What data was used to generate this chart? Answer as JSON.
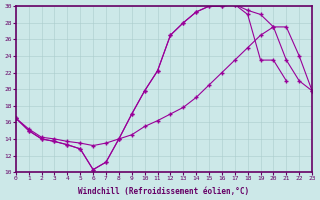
{
  "xlabel": "Windchill (Refroidissement éolien,°C)",
  "background_color": "#cce8e8",
  "line_color": "#990099",
  "xlim": [
    0,
    23
  ],
  "ylim": [
    10,
    30
  ],
  "xticks": [
    0,
    1,
    2,
    3,
    4,
    5,
    6,
    7,
    8,
    9,
    10,
    11,
    12,
    13,
    14,
    15,
    16,
    17,
    18,
    19,
    20,
    21,
    22,
    23
  ],
  "yticks": [
    10,
    12,
    14,
    16,
    18,
    20,
    22,
    24,
    26,
    28,
    30
  ],
  "curve1_x": [
    0,
    1,
    2,
    3,
    4,
    5,
    6,
    7,
    8,
    9,
    10,
    11,
    12,
    13,
    14,
    15,
    16,
    17,
    18,
    19,
    20,
    21
  ],
  "curve1_y": [
    16.5,
    15.0,
    14.0,
    13.7,
    13.3,
    12.8,
    10.3,
    11.2,
    14.0,
    17.0,
    19.8,
    22.2,
    26.5,
    28.0,
    29.3,
    30.0,
    30.0,
    30.2,
    29.0,
    23.5,
    23.5,
    21.0
  ],
  "curve2_x": [
    0,
    1,
    2,
    3,
    4,
    5,
    6,
    7,
    8,
    9,
    10,
    11,
    12,
    13,
    14,
    15,
    16,
    17,
    18,
    19,
    20,
    21,
    22,
    23
  ],
  "curve2_y": [
    16.5,
    15.0,
    14.0,
    13.7,
    13.3,
    12.8,
    10.3,
    11.2,
    14.0,
    17.0,
    19.8,
    22.2,
    26.5,
    28.0,
    29.3,
    30.0,
    30.0,
    30.2,
    29.5,
    29.0,
    27.5,
    23.5,
    21.0,
    19.8
  ],
  "curve3_x": [
    0,
    1,
    2,
    3,
    4,
    5,
    6,
    7,
    8,
    9,
    10,
    11,
    12,
    13,
    14,
    15,
    16,
    17,
    18,
    19,
    20,
    21,
    22,
    23
  ],
  "curve3_y": [
    16.5,
    15.2,
    14.2,
    14.0,
    13.7,
    13.5,
    13.2,
    13.5,
    14.0,
    14.5,
    15.5,
    16.2,
    17.0,
    17.8,
    19.0,
    20.5,
    22.0,
    23.5,
    25.0,
    26.5,
    27.5,
    27.5,
    24.0,
    19.8
  ]
}
